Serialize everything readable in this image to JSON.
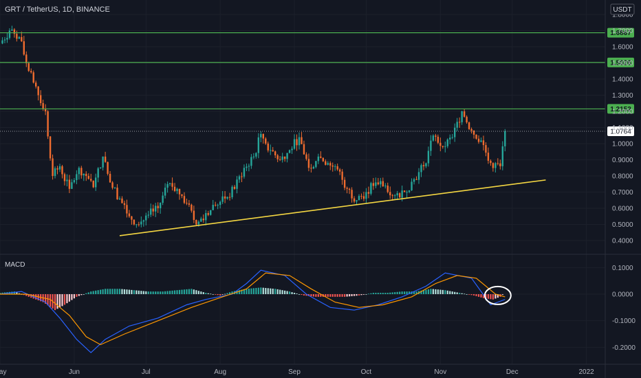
{
  "header": {
    "symbol_title": "GRT / TetherUS, 1D, BINANCE",
    "currency": "USDT"
  },
  "chart_data": [
    {
      "type": "candlestick",
      "title": "GRT / TetherUS, 1D, BINANCE",
      "ylabel": "USDT",
      "x_tick_labels": [
        "May",
        "Jun",
        "Jul",
        "Aug",
        "Sep",
        "Oct",
        "Nov",
        "Dec",
        "2022"
      ],
      "y_ticks": [
        "1.8000",
        "1.7000",
        "1.6000",
        "1.5000",
        "1.4000",
        "1.3000",
        "1.2000",
        "1.1000",
        "1.0000",
        "0.9000",
        "0.8000",
        "0.7000",
        "0.6000",
        "0.5000",
        "0.4000"
      ],
      "ylim": [
        0.4,
        1.8
      ],
      "last_price": "1.0764",
      "horizontal_levels": [
        "1.6867",
        "1.5026",
        "1.2152"
      ],
      "trendline": {
        "from": {
          "date": "2021-06-20",
          "price": 0.43
        },
        "to": {
          "date": "2021-12-15",
          "price": 0.775
        }
      },
      "colors": {
        "up": "#26a69a",
        "down": "#ef6c2f",
        "level": "#4caf50",
        "trend": "#f5d742"
      },
      "close_series": [
        {
          "date": "2021-05-01",
          "close": 1.62
        },
        {
          "date": "2021-05-05",
          "close": 1.7
        },
        {
          "date": "2021-05-09",
          "close": 1.66
        },
        {
          "date": "2021-05-13",
          "close": 1.45
        },
        {
          "date": "2021-05-17",
          "close": 1.3
        },
        {
          "date": "2021-05-20",
          "close": 1.2
        },
        {
          "date": "2021-05-23",
          "close": 0.8
        },
        {
          "date": "2021-05-26",
          "close": 0.86
        },
        {
          "date": "2021-05-30",
          "close": 0.72
        },
        {
          "date": "2021-06-03",
          "close": 0.85
        },
        {
          "date": "2021-06-06",
          "close": 0.8
        },
        {
          "date": "2021-06-09",
          "close": 0.73
        },
        {
          "date": "2021-06-13",
          "close": 0.92
        },
        {
          "date": "2021-06-16",
          "close": 0.76
        },
        {
          "date": "2021-06-20",
          "close": 0.66
        },
        {
          "date": "2021-06-24",
          "close": 0.55
        },
        {
          "date": "2021-06-28",
          "close": 0.5
        },
        {
          "date": "2021-07-02",
          "close": 0.56
        },
        {
          "date": "2021-07-06",
          "close": 0.6
        },
        {
          "date": "2021-07-10",
          "close": 0.75
        },
        {
          "date": "2021-07-14",
          "close": 0.72
        },
        {
          "date": "2021-07-18",
          "close": 0.63
        },
        {
          "date": "2021-07-22",
          "close": 0.5
        },
        {
          "date": "2021-07-26",
          "close": 0.57
        },
        {
          "date": "2021-07-30",
          "close": 0.62
        },
        {
          "date": "2021-08-03",
          "close": 0.66
        },
        {
          "date": "2021-08-07",
          "close": 0.72
        },
        {
          "date": "2021-08-11",
          "close": 0.85
        },
        {
          "date": "2021-08-15",
          "close": 0.92
        },
        {
          "date": "2021-08-18",
          "close": 1.06
        },
        {
          "date": "2021-08-22",
          "close": 0.96
        },
        {
          "date": "2021-08-26",
          "close": 0.9
        },
        {
          "date": "2021-08-30",
          "close": 0.96
        },
        {
          "date": "2021-09-03",
          "close": 1.04
        },
        {
          "date": "2021-09-07",
          "close": 0.85
        },
        {
          "date": "2021-09-11",
          "close": 0.92
        },
        {
          "date": "2021-09-15",
          "close": 0.88
        },
        {
          "date": "2021-09-19",
          "close": 0.84
        },
        {
          "date": "2021-09-23",
          "close": 0.72
        },
        {
          "date": "2021-09-27",
          "close": 0.65
        },
        {
          "date": "2021-10-01",
          "close": 0.7
        },
        {
          "date": "2021-10-05",
          "close": 0.76
        },
        {
          "date": "2021-10-09",
          "close": 0.74
        },
        {
          "date": "2021-10-13",
          "close": 0.68
        },
        {
          "date": "2021-10-17",
          "close": 0.7
        },
        {
          "date": "2021-10-21",
          "close": 0.78
        },
        {
          "date": "2021-10-25",
          "close": 0.86
        },
        {
          "date": "2021-10-29",
          "close": 1.05
        },
        {
          "date": "2021-11-02",
          "close": 0.98
        },
        {
          "date": "2021-11-06",
          "close": 1.04
        },
        {
          "date": "2021-11-10",
          "close": 1.2
        },
        {
          "date": "2021-11-14",
          "close": 1.08
        },
        {
          "date": "2021-11-18",
          "close": 1.02
        },
        {
          "date": "2021-11-22",
          "close": 0.88
        },
        {
          "date": "2021-11-26",
          "close": 0.86
        },
        {
          "date": "2021-11-28",
          "close": 1.0764
        }
      ]
    },
    {
      "type": "line",
      "title": "MACD",
      "x_tick_labels": [
        "May",
        "Jun",
        "Jul",
        "Aug",
        "Sep",
        "Oct",
        "Nov",
        "Dec",
        "2022"
      ],
      "y_ticks": [
        "0.1000",
        "0.0000",
        "-0.1000",
        "-0.2000"
      ],
      "ylim": [
        -0.23,
        0.12
      ],
      "series": [
        {
          "color": "#2962ff",
          "points": [
            {
              "date": "2021-05-01",
              "value": 0.0
            },
            {
              "date": "2021-05-10",
              "value": 0.01
            },
            {
              "date": "2021-05-20",
              "value": -0.03
            },
            {
              "date": "2021-05-26",
              "value": -0.09
            },
            {
              "date": "2021-06-02",
              "value": -0.17
            },
            {
              "date": "2021-06-08",
              "value": -0.22
            },
            {
              "date": "2021-06-14",
              "value": -0.17
            },
            {
              "date": "2021-06-24",
              "value": -0.12
            },
            {
              "date": "2021-07-06",
              "value": -0.09
            },
            {
              "date": "2021-07-18",
              "value": -0.04
            },
            {
              "date": "2021-07-26",
              "value": -0.02
            },
            {
              "date": "2021-08-06",
              "value": 0.0
            },
            {
              "date": "2021-08-12",
              "value": 0.04
            },
            {
              "date": "2021-08-18",
              "value": 0.09
            },
            {
              "date": "2021-08-28",
              "value": 0.07
            },
            {
              "date": "2021-09-06",
              "value": 0.0
            },
            {
              "date": "2021-09-16",
              "value": -0.05
            },
            {
              "date": "2021-09-26",
              "value": -0.06
            },
            {
              "date": "2021-10-06",
              "value": -0.04
            },
            {
              "date": "2021-10-16",
              "value": -0.01
            },
            {
              "date": "2021-10-26",
              "value": 0.03
            },
            {
              "date": "2021-11-03",
              "value": 0.08
            },
            {
              "date": "2021-11-14",
              "value": 0.06
            },
            {
              "date": "2021-11-22",
              "value": -0.04
            },
            {
              "date": "2021-11-28",
              "value": -0.02
            }
          ]
        },
        {
          "color": "#ff9800",
          "points": [
            {
              "date": "2021-05-01",
              "value": 0.0
            },
            {
              "date": "2021-05-12",
              "value": 0.0
            },
            {
              "date": "2021-05-22",
              "value": -0.02
            },
            {
              "date": "2021-05-30",
              "value": -0.08
            },
            {
              "date": "2021-06-06",
              "value": -0.16
            },
            {
              "date": "2021-06-12",
              "value": -0.19
            },
            {
              "date": "2021-06-22",
              "value": -0.15
            },
            {
              "date": "2021-07-06",
              "value": -0.1
            },
            {
              "date": "2021-07-20",
              "value": -0.05
            },
            {
              "date": "2021-08-02",
              "value": -0.01
            },
            {
              "date": "2021-08-12",
              "value": 0.02
            },
            {
              "date": "2021-08-20",
              "value": 0.08
            },
            {
              "date": "2021-08-30",
              "value": 0.07
            },
            {
              "date": "2021-09-08",
              "value": 0.02
            },
            {
              "date": "2021-09-18",
              "value": -0.03
            },
            {
              "date": "2021-09-28",
              "value": -0.05
            },
            {
              "date": "2021-10-08",
              "value": -0.04
            },
            {
              "date": "2021-10-20",
              "value": -0.01
            },
            {
              "date": "2021-10-30",
              "value": 0.04
            },
            {
              "date": "2021-11-08",
              "value": 0.07
            },
            {
              "date": "2021-11-16",
              "value": 0.06
            },
            {
              "date": "2021-11-24",
              "value": 0.0
            },
            {
              "date": "2021-11-28",
              "value": -0.01
            }
          ]
        }
      ],
      "histogram": [
        {
          "date": "2021-05-01",
          "value": 0.005
        },
        {
          "date": "2021-05-07",
          "value": 0.01
        },
        {
          "date": "2021-05-13",
          "value": -0.01
        },
        {
          "date": "2021-05-19",
          "value": -0.03
        },
        {
          "date": "2021-05-24",
          "value": -0.06
        },
        {
          "date": "2021-05-28",
          "value": -0.04
        },
        {
          "date": "2021-06-02",
          "value": -0.01
        },
        {
          "date": "2021-06-08",
          "value": 0.01
        },
        {
          "date": "2021-06-14",
          "value": 0.02
        },
        {
          "date": "2021-06-20",
          "value": 0.02
        },
        {
          "date": "2021-06-26",
          "value": 0.015
        },
        {
          "date": "2021-07-02",
          "value": 0.01
        },
        {
          "date": "2021-07-08",
          "value": 0.01
        },
        {
          "date": "2021-07-14",
          "value": 0.015
        },
        {
          "date": "2021-07-20",
          "value": 0.02
        },
        {
          "date": "2021-07-26",
          "value": 0.005
        },
        {
          "date": "2021-08-01",
          "value": -0.005
        },
        {
          "date": "2021-08-06",
          "value": 0.01
        },
        {
          "date": "2021-08-12",
          "value": 0.02
        },
        {
          "date": "2021-08-18",
          "value": 0.025
        },
        {
          "date": "2021-08-24",
          "value": 0.02
        },
        {
          "date": "2021-08-30",
          "value": 0.01
        },
        {
          "date": "2021-09-05",
          "value": -0.005
        },
        {
          "date": "2021-09-10",
          "value": -0.01
        },
        {
          "date": "2021-09-16",
          "value": -0.01
        },
        {
          "date": "2021-09-22",
          "value": -0.01
        },
        {
          "date": "2021-09-28",
          "value": -0.005
        },
        {
          "date": "2021-10-04",
          "value": 0.005
        },
        {
          "date": "2021-10-10",
          "value": 0.005
        },
        {
          "date": "2021-10-16",
          "value": 0.01
        },
        {
          "date": "2021-10-22",
          "value": 0.01
        },
        {
          "date": "2021-10-28",
          "value": 0.02
        },
        {
          "date": "2021-11-03",
          "value": 0.015
        },
        {
          "date": "2021-11-09",
          "value": 0.005
        },
        {
          "date": "2021-11-15",
          "value": -0.005
        },
        {
          "date": "2021-11-19",
          "value": -0.015
        },
        {
          "date": "2021-11-23",
          "value": -0.02
        },
        {
          "date": "2021-11-26",
          "value": -0.01
        },
        {
          "date": "2021-11-28",
          "value": 0.005
        }
      ]
    }
  ]
}
